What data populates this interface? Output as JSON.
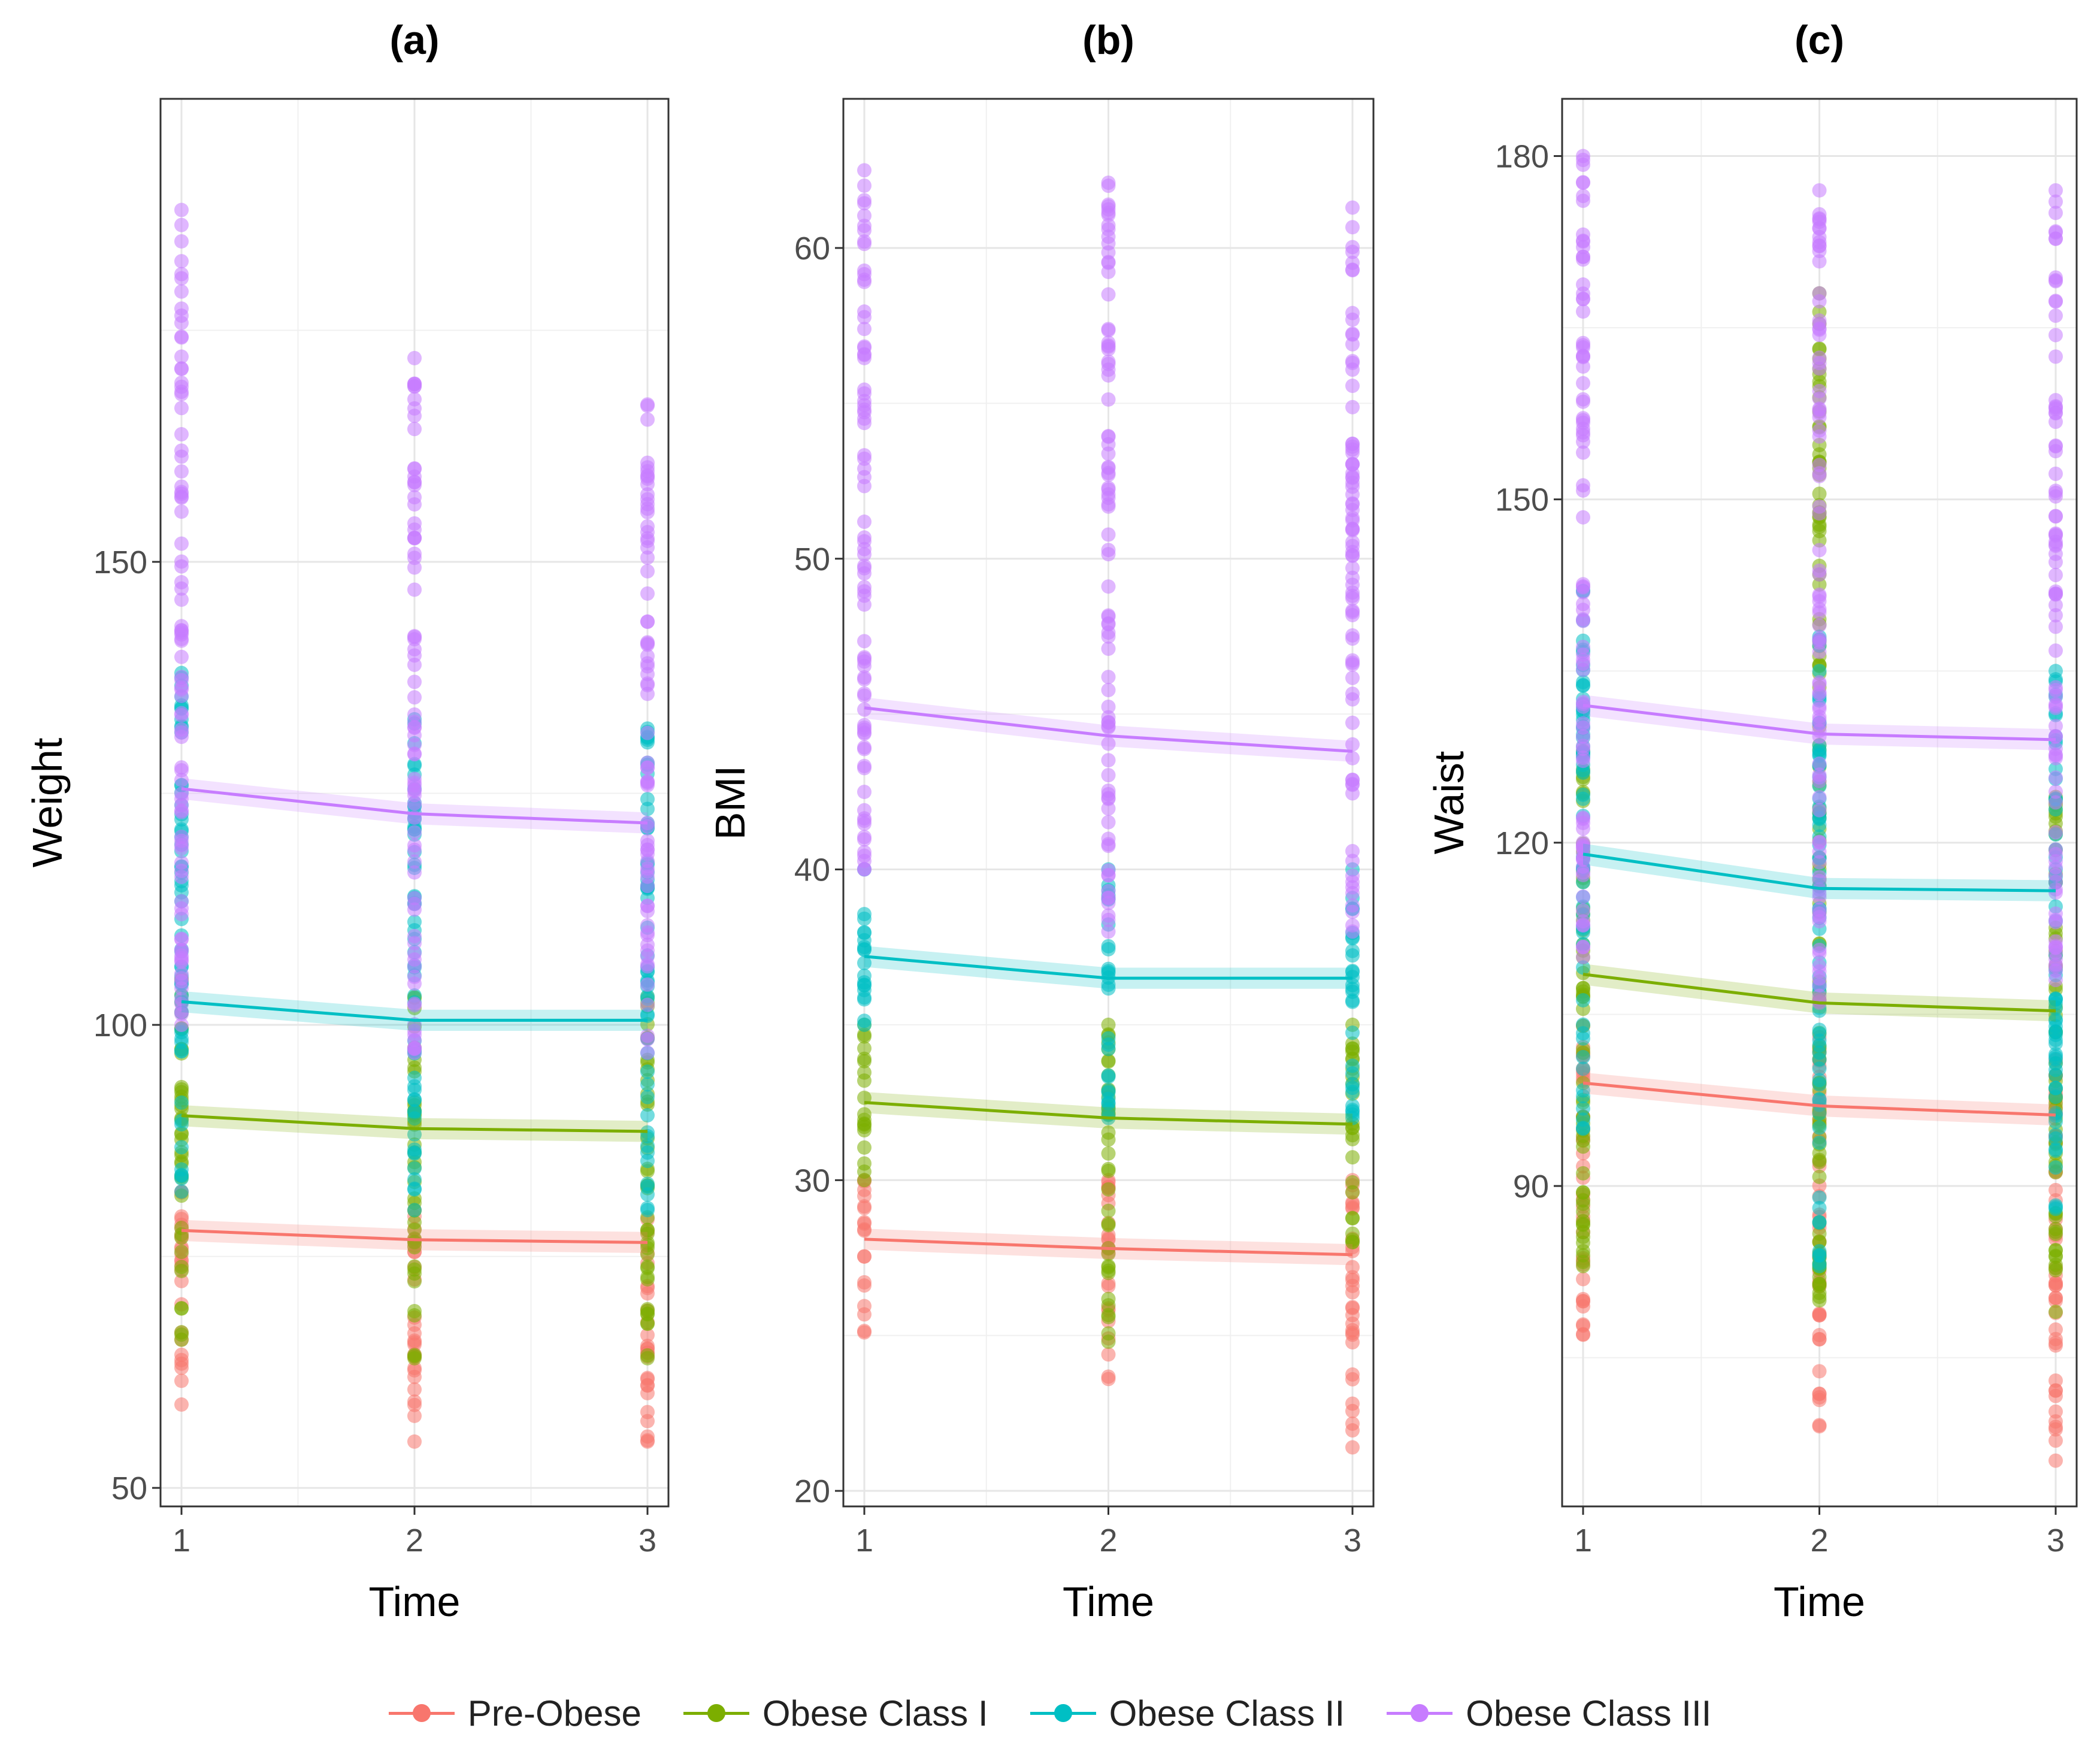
{
  "chart_data": [
    {
      "type": "line",
      "title": "(a)",
      "xlabel": "Time",
      "ylabel": "Weight",
      "x": [
        1,
        2,
        3
      ],
      "ylim": [
        48,
        200
      ],
      "yticks": [
        50,
        100,
        150
      ],
      "grid": true,
      "series": [
        {
          "name": "Pre-Obese",
          "values": [
            77.8,
            76.8,
            76.5
          ]
        },
        {
          "name": "Obese Class I",
          "values": [
            90.2,
            88.8,
            88.5
          ]
        },
        {
          "name": "Obese Class II",
          "values": [
            102.5,
            100.5,
            100.5
          ]
        },
        {
          "name": "Obese Class III",
          "values": [
            125.5,
            122.8,
            121.8
          ]
        }
      ],
      "points": [
        {
          "series": "Pre-Obese",
          "x": 1,
          "min": 59,
          "max": 82
        },
        {
          "series": "Pre-Obese",
          "x": 2,
          "min": 55,
          "max": 80
        },
        {
          "series": "Pre-Obese",
          "x": 3,
          "min": 55,
          "max": 79
        },
        {
          "series": "Obese Class I",
          "x": 1,
          "min": 66,
          "max": 105
        },
        {
          "series": "Obese Class I",
          "x": 2,
          "min": 64,
          "max": 103
        },
        {
          "series": "Obese Class I",
          "x": 3,
          "min": 64,
          "max": 103
        },
        {
          "series": "Obese Class II",
          "x": 1,
          "min": 82,
          "max": 138
        },
        {
          "series": "Obese Class II",
          "x": 2,
          "min": 80,
          "max": 133
        },
        {
          "series": "Obese Class II",
          "x": 3,
          "min": 80,
          "max": 132
        },
        {
          "series": "Obese Class III",
          "x": 1,
          "min": 100,
          "max": 188
        },
        {
          "series": "Obese Class III",
          "x": 2,
          "min": 97,
          "max": 172
        },
        {
          "series": "Obese Class III",
          "x": 3,
          "min": 97,
          "max": 167
        }
      ]
    },
    {
      "type": "line",
      "title": "(b)",
      "xlabel": "Time",
      "ylabel": "BMI",
      "x": [
        1,
        2,
        3
      ],
      "ylim": [
        19.5,
        64.8
      ],
      "yticks": [
        20,
        30,
        40,
        50,
        60
      ],
      "grid": true,
      "series": [
        {
          "name": "Pre-Obese",
          "values": [
            28.1,
            27.8,
            27.6
          ]
        },
        {
          "name": "Obese Class I",
          "values": [
            32.5,
            32.0,
            31.8
          ]
        },
        {
          "name": "Obese Class II",
          "values": [
            37.2,
            36.5,
            36.5
          ]
        },
        {
          "name": "Obese Class III",
          "values": [
            45.2,
            44.3,
            43.8
          ]
        }
      ],
      "points": [
        {
          "series": "Pre-Obese",
          "x": 1,
          "min": 25.1,
          "max": 30.0
        },
        {
          "series": "Pre-Obese",
          "x": 2,
          "min": 23.6,
          "max": 30.0
        },
        {
          "series": "Pre-Obese",
          "x": 3,
          "min": 21.4,
          "max": 30.0
        },
        {
          "series": "Obese Class I",
          "x": 1,
          "min": 30.0,
          "max": 35.0
        },
        {
          "series": "Obese Class I",
          "x": 2,
          "min": 24.8,
          "max": 35.0
        },
        {
          "series": "Obese Class I",
          "x": 3,
          "min": 28.0,
          "max": 35.0
        },
        {
          "series": "Obese Class II",
          "x": 1,
          "min": 35.0,
          "max": 40.0
        },
        {
          "series": "Obese Class II",
          "x": 2,
          "min": 32.0,
          "max": 40.0
        },
        {
          "series": "Obese Class II",
          "x": 3,
          "min": 32.0,
          "max": 40.0
        },
        {
          "series": "Obese Class III",
          "x": 1,
          "min": 40.0,
          "max": 62.5
        },
        {
          "series": "Obese Class III",
          "x": 2,
          "min": 38.0,
          "max": 62.1
        },
        {
          "series": "Obese Class III",
          "x": 3,
          "min": 38.0,
          "max": 61.3
        }
      ]
    },
    {
      "type": "line",
      "title": "(c)",
      "xlabel": "Time",
      "ylabel": "Waist",
      "x": [
        1,
        2,
        3
      ],
      "ylim": [
        62,
        185
      ],
      "yticks": [
        90,
        120,
        150,
        180
      ],
      "grid": true,
      "series": [
        {
          "name": "Pre-Obese",
          "values": [
            99,
            97,
            96.2
          ]
        },
        {
          "name": "Obese Class I",
          "values": [
            108.5,
            106,
            105.3
          ]
        },
        {
          "name": "Obese Class II",
          "values": [
            119,
            116,
            115.8
          ]
        },
        {
          "name": "Obese Class III",
          "values": [
            132,
            129.5,
            129
          ]
        }
      ],
      "points": [
        {
          "series": "Pre-Obese",
          "x": 1,
          "min": 77,
          "max": 104
        },
        {
          "series": "Pre-Obese",
          "x": 2,
          "min": 69,
          "max": 103
        },
        {
          "series": "Pre-Obese",
          "x": 3,
          "min": 66,
          "max": 101
        },
        {
          "series": "Obese Class I",
          "x": 1,
          "min": 83,
          "max": 128
        },
        {
          "series": "Obese Class I",
          "x": 2,
          "min": 80,
          "max": 168
        },
        {
          "series": "Obese Class I",
          "x": 3,
          "min": 79,
          "max": 124
        },
        {
          "series": "Obese Class II",
          "x": 1,
          "min": 95,
          "max": 142
        },
        {
          "series": "Obese Class II",
          "x": 2,
          "min": 83,
          "max": 138
        },
        {
          "series": "Obese Class II",
          "x": 3,
          "min": 88,
          "max": 135
        },
        {
          "series": "Obese Class III",
          "x": 1,
          "min": 110,
          "max": 180
        },
        {
          "series": "Obese Class III",
          "x": 2,
          "min": 106,
          "max": 177
        },
        {
          "series": "Obese Class III",
          "x": 3,
          "min": 108,
          "max": 177
        }
      ]
    }
  ],
  "legend": {
    "items": [
      {
        "label": "Pre-Obese",
        "color": "#F8766D"
      },
      {
        "label": "Obese Class I",
        "color": "#7CAE00"
      },
      {
        "label": "Obese Class II",
        "color": "#00BFC4"
      },
      {
        "label": "Obese Class III",
        "color": "#C77CFF"
      }
    ]
  }
}
